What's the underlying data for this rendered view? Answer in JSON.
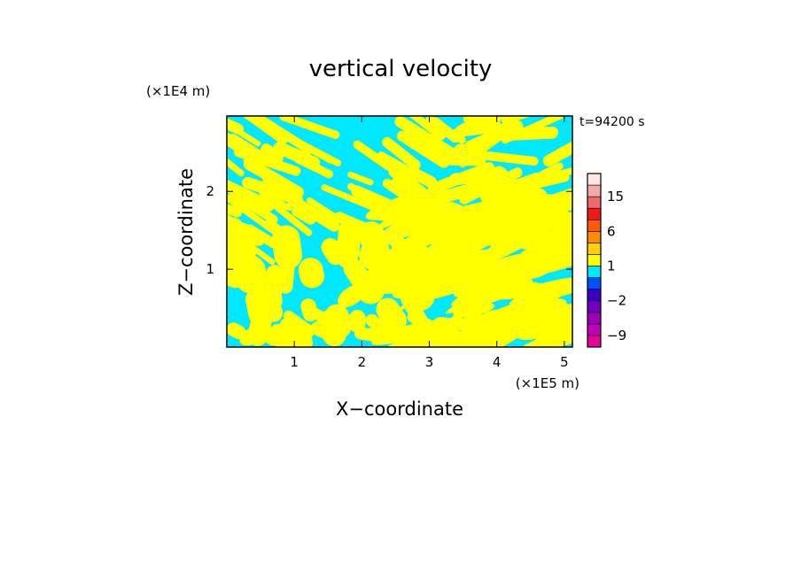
{
  "chart_data": {
    "type": "heatmap",
    "title": "vertical velocity",
    "xlabel": "X−coordinate",
    "ylabel": "Z−coordinate",
    "x_unit": "(×1E5 m)",
    "y_unit": "(×1E4 m)",
    "time_label": "t=94200 s",
    "xlim": [
      0,
      5.12
    ],
    "ylim": [
      0,
      2.97
    ],
    "x_ticks": [
      1,
      2,
      3,
      4,
      5
    ],
    "y_ticks": [
      1,
      2
    ],
    "x_tick_labels": [
      "1",
      "2",
      "3",
      "4",
      "5"
    ],
    "y_tick_labels": [
      "1",
      "2"
    ],
    "grid": false,
    "field_colors": {
      "negative": "#00e8ff",
      "positive": "#ffff00"
    },
    "colorbar": {
      "levels": [
        -12,
        -9,
        -6,
        -4,
        -2,
        -1,
        0,
        1,
        2,
        4,
        6,
        9,
        12,
        15,
        18,
        24
      ],
      "colors": [
        "#e6009e",
        "#c000b4",
        "#9a00b8",
        "#7000c0",
        "#3a00c8",
        "#0050ff",
        "#00e8ff",
        "#ffff00",
        "#ffd200",
        "#ff8c00",
        "#ff5a00",
        "#ee1a1a",
        "#ee6a6a",
        "#f4aaaa",
        "#ffe6e6"
      ],
      "tick_labels": [
        {
          "text": "15",
          "value": 15
        },
        {
          "text": "6",
          "value": 6
        },
        {
          "text": "1",
          "value": 1
        },
        {
          "text": "−2",
          "value": -2
        },
        {
          "text": "−9",
          "value": -9
        }
      ]
    }
  }
}
